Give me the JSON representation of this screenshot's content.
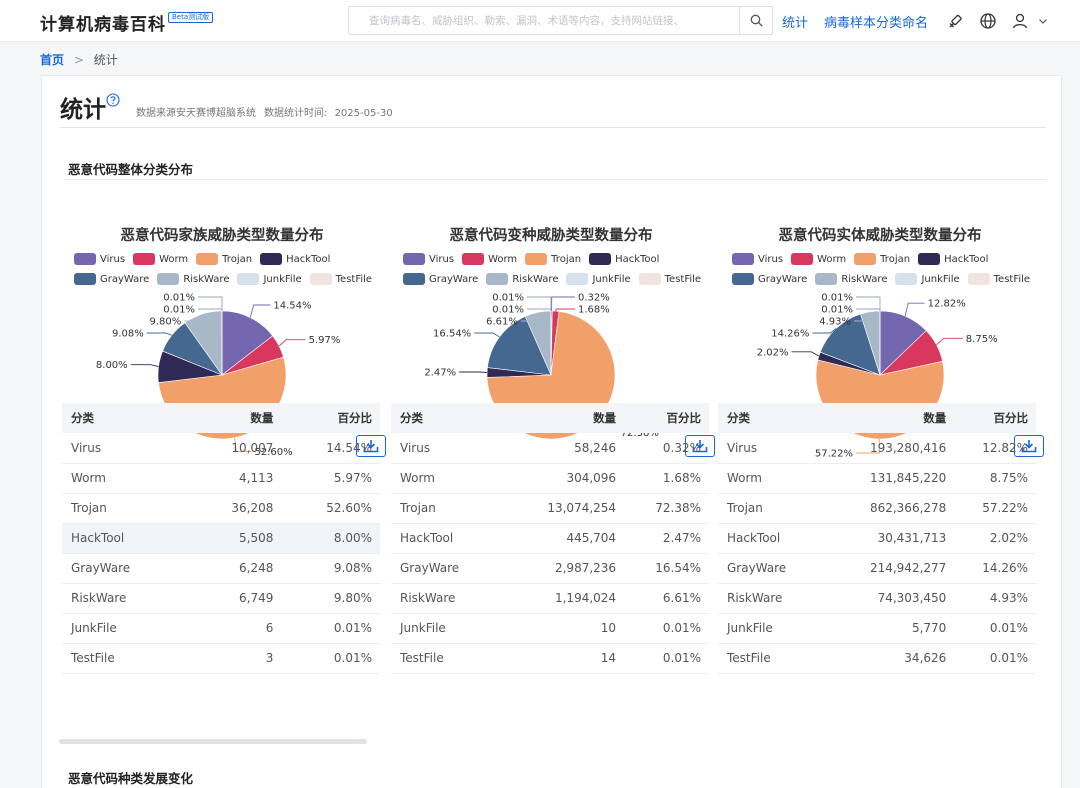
{
  "header": {
    "logo": "计算机病毒百科",
    "badge": "Beta测试版",
    "search_placeholder": "查询病毒名、威胁组织、勒索、漏洞、术语等内容，支持网站链接、",
    "nav_stats": "统计",
    "nav_naming": "病毒样本分类命名",
    "icons": [
      "search-icon",
      "satellite-icon",
      "globe-icon",
      "user-icon",
      "chevron-down-icon"
    ]
  },
  "breadcrumb": {
    "home": "首页",
    "separator": ">",
    "current": "统计"
  },
  "page": {
    "title": "统计",
    "source": "数据来源安天赛博超脑系统",
    "time_label": "数据统计时间:",
    "time": "2025-05-30",
    "section1": "恶意代码整体分类分布",
    "section2": "恶意代码种类发展变化"
  },
  "legend": [
    "Virus",
    "Worm",
    "Trojan",
    "HackTool",
    "GrayWare",
    "RiskWare",
    "JunkFile",
    "TestFile"
  ],
  "colors": {
    "accent": "#1668dc",
    "series": [
      "#7467b0",
      "#d8385e",
      "#f1a06a",
      "#2f2a55",
      "#44688f",
      "#a9b8c9",
      "#d7e1ec",
      "#efe4df"
    ]
  },
  "table_headers": [
    "分类",
    "数量",
    "百分比"
  ],
  "chart_data": [
    {
      "type": "pie",
      "title": "恶意代码家族威胁类型数量分布",
      "categories": [
        "Virus",
        "Worm",
        "Trojan",
        "HackTool",
        "GrayWare",
        "RiskWare",
        "JunkFile",
        "TestFile"
      ],
      "values": [
        10007,
        4113,
        36208,
        5508,
        6248,
        6749,
        6,
        3
      ],
      "percent_labels": [
        "14.54%",
        "5.97%",
        "52.60%",
        "8.00%",
        "9.08%",
        "9.80%",
        "0.01%",
        "0.01%"
      ],
      "counts": [
        "10,007",
        "4,113",
        "36,208",
        "5,508",
        "6,248",
        "6,749",
        "6",
        "3"
      ]
    },
    {
      "type": "pie",
      "title": "恶意代码变种威胁类型数量分布",
      "categories": [
        "Virus",
        "Worm",
        "Trojan",
        "HackTool",
        "GrayWare",
        "RiskWare",
        "JunkFile",
        "TestFile"
      ],
      "values": [
        58246,
        304096,
        13074254,
        445704,
        2987236,
        1194024,
        10,
        14
      ],
      "percent_labels": [
        "0.32%",
        "1.68%",
        "72.38%",
        "2.47%",
        "16.54%",
        "6.61%",
        "0.01%",
        "0.01%"
      ],
      "counts": [
        "58,246",
        "304,096",
        "13,074,254",
        "445,704",
        "2,987,236",
        "1,194,024",
        "10",
        "14"
      ]
    },
    {
      "type": "pie",
      "title": "恶意代码实体威胁类型数量分布",
      "categories": [
        "Virus",
        "Worm",
        "Trojan",
        "HackTool",
        "GrayWare",
        "RiskWare",
        "JunkFile",
        "TestFile"
      ],
      "values": [
        193280416,
        131845220,
        862366278,
        30431713,
        214942277,
        74303450,
        5770,
        34626
      ],
      "percent_labels": [
        "12.82%",
        "8.75%",
        "57.22%",
        "2.02%",
        "14.26%",
        "4.93%",
        "0.01%",
        "0.01%"
      ],
      "counts": [
        "193,280,416",
        "131,845,220",
        "862,366,278",
        "30,431,713",
        "214,942,277",
        "74,303,450",
        "5,770",
        "34,626"
      ]
    }
  ]
}
